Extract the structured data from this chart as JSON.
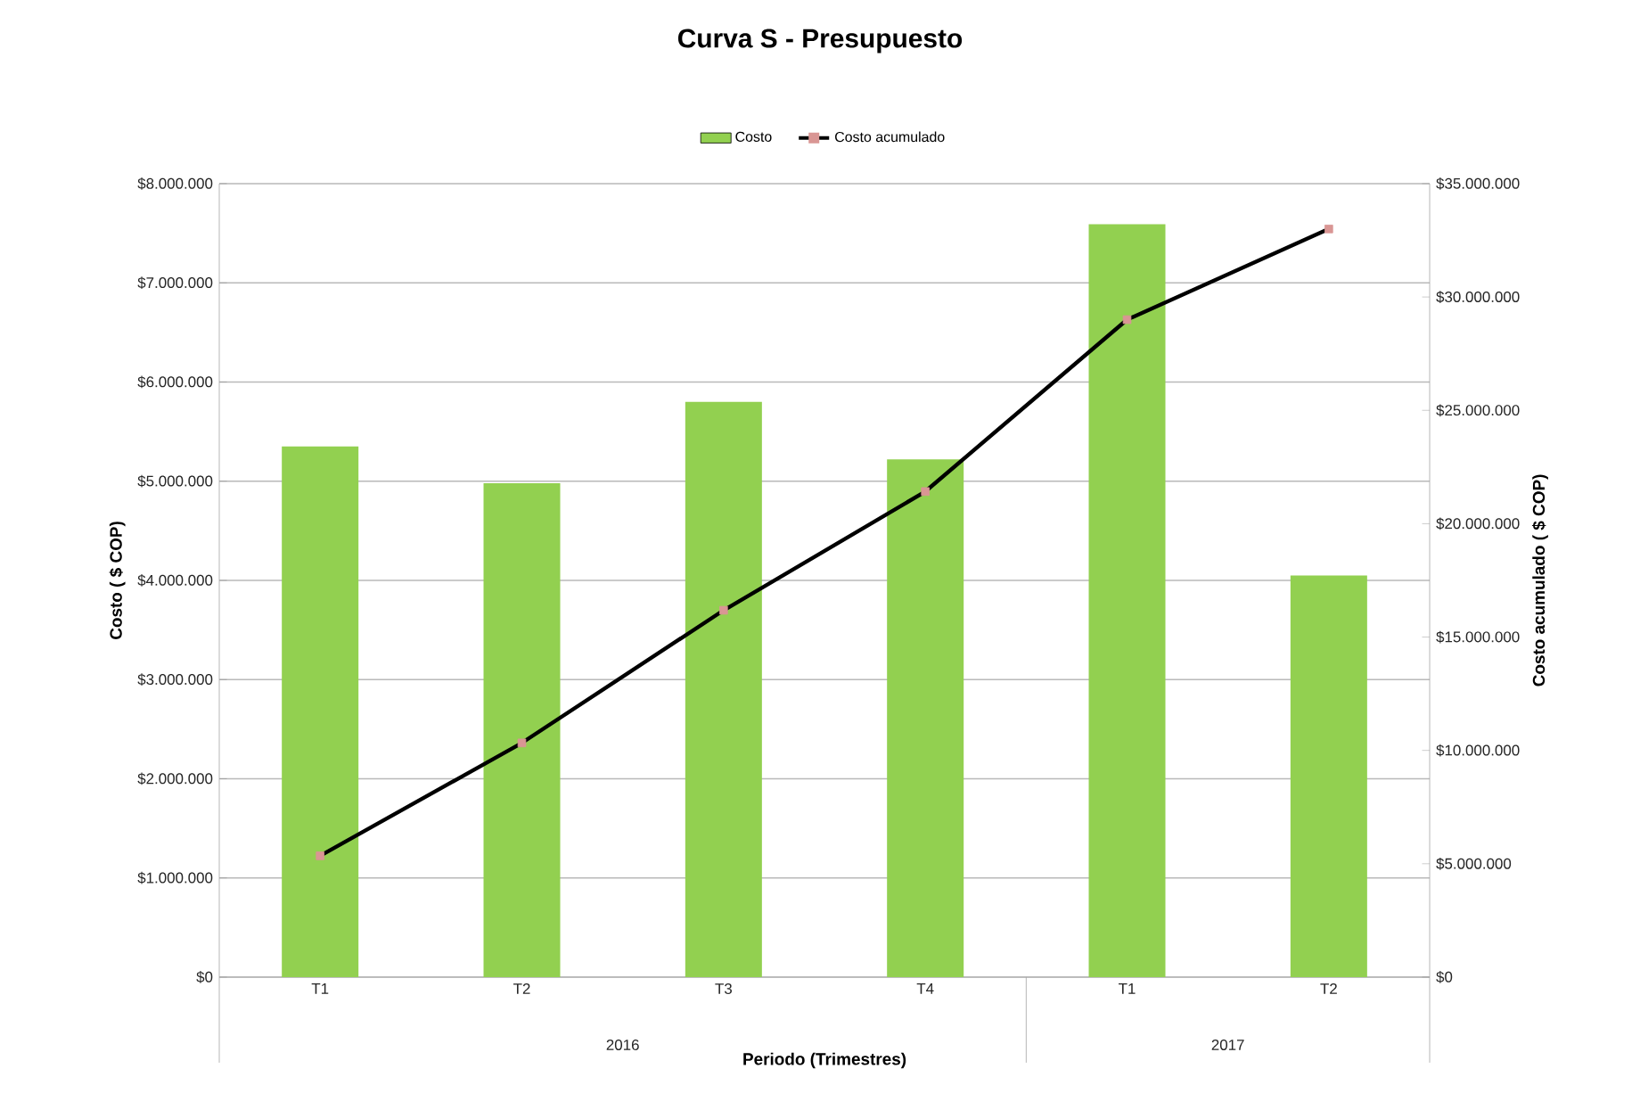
{
  "chart_data": {
    "type": "bar",
    "title": "Curva S - Presupuesto",
    "xlabel": "Periodo (Trimestres)",
    "ylabel": "Costo ( $ COP)",
    "y2label": "Costo acumulado ( $ COP)",
    "categories": [
      "T1",
      "T2",
      "T3",
      "T4",
      "T1",
      "T2"
    ],
    "annotations": [
      "2016",
      "2017"
    ],
    "series": [
      {
        "name": "Costo",
        "color": "#92d050",
        "values": [
          5350000,
          4980000,
          5800000,
          5220000,
          7590000,
          4050000
        ]
      },
      {
        "name": "Costo acumulado",
        "type": "line",
        "axis": "y2",
        "color": "#000000",
        "marker": "square",
        "colors": [
          "#d99694",
          "#d99694",
          "#d99694",
          "#d99694",
          "#d99694",
          "#d99694"
        ],
        "values": [
          5350000,
          10330000,
          16180000,
          21420000,
          29000000,
          33000000
        ]
      }
    ],
    "ylim": [
      0,
      8000000
    ],
    "yticks": [
      {
        "value": 0,
        "label": "$0"
      },
      {
        "value": 1000000,
        "label": "$1.000.000"
      },
      {
        "value": 2000000,
        "label": "$2.000.000"
      },
      {
        "value": 3000000,
        "label": "$3.000.000"
      },
      {
        "value": 4000000,
        "label": "$4.000.000"
      },
      {
        "value": 5000000,
        "label": "$5.000.000"
      },
      {
        "value": 6000000,
        "label": "$6.000.000"
      },
      {
        "value": 7000000,
        "label": "$7.000.000"
      },
      {
        "value": 8000000,
        "label": "$8.000.000"
      }
    ],
    "y2lim": [
      0,
      35000000
    ],
    "y2ticks": [
      {
        "value": 0,
        "label": "$0"
      },
      {
        "value": 5000000,
        "label": "$5.000.000"
      },
      {
        "value": 10000000,
        "label": "$10.000.000"
      },
      {
        "value": 15000000,
        "label": "$15.000.000"
      },
      {
        "value": 20000000,
        "label": "$20.000.000"
      },
      {
        "value": 25000000,
        "label": "$25.000.000"
      },
      {
        "value": 30000000,
        "label": "$30.000.000"
      },
      {
        "value": 35000000,
        "label": "$35.000.000"
      }
    ],
    "grid": "y",
    "legend": "top"
  }
}
